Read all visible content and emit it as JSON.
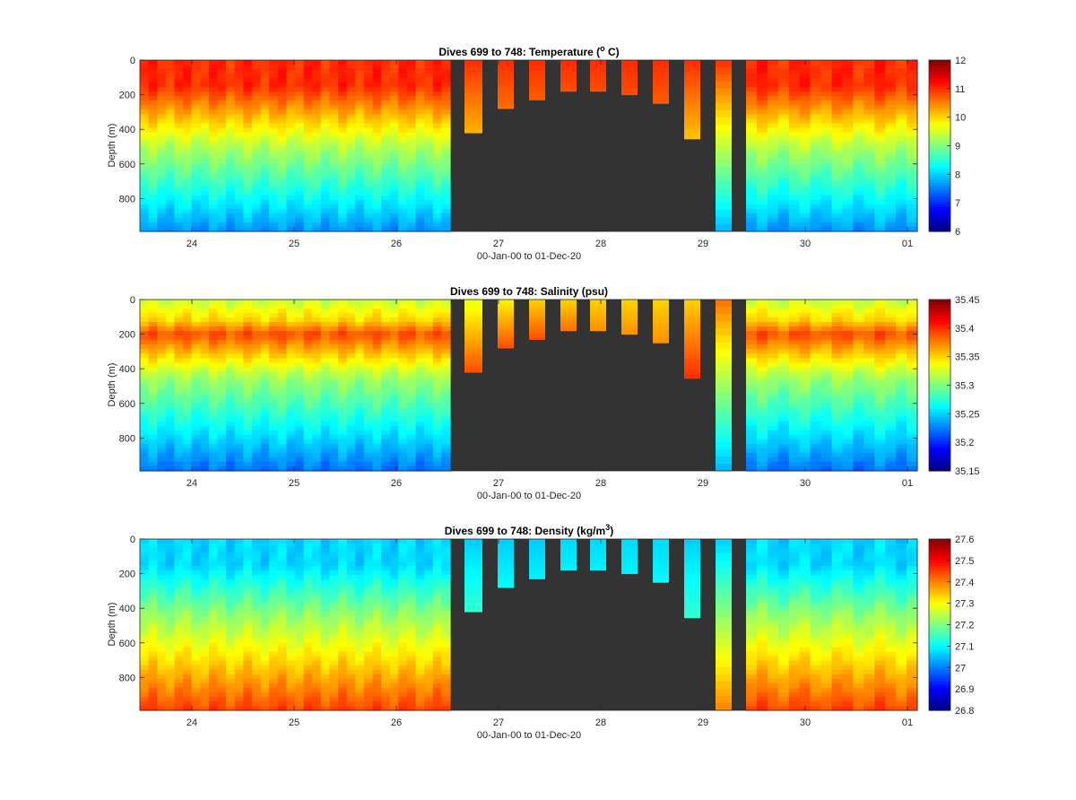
{
  "chart_data": [
    {
      "type": "heatmap",
      "title": "Dives 699 to 748: Temperature (° C)",
      "title_main": "Dives 699 to 748: Temperature (",
      "title_unit_sup": "o",
      "title_unit_tail": " C)",
      "xlabel": "00-Jan-00 to 01-Dec-20",
      "ylabel": "Depth (m)",
      "x_tick_labels": [
        "24",
        "25",
        "26",
        "27",
        "28",
        "29",
        "30",
        "01"
      ],
      "y_tick_labels": [
        "0",
        "200",
        "400",
        "600",
        "800"
      ],
      "y_ticks": [
        0,
        200,
        400,
        600,
        800
      ],
      "ylim": [
        0,
        990
      ],
      "y_reversed": true,
      "colorbar_ticks": [
        12,
        11,
        10,
        9,
        8,
        7,
        6
      ],
      "colorbar_tick_labels": [
        "12",
        "11",
        "10",
        "9",
        "8",
        "7",
        "6"
      ],
      "clim": [
        6,
        12
      ],
      "colormap": "jet",
      "no_data_color": "#333333",
      "top_layer": {
        "value": 11.0,
        "depth": 150
      },
      "mid_layer": {
        "value": 9.3,
        "depth": 500
      },
      "bottom_value": 7.6,
      "segment_profiles": [
        {
          "depth": 420,
          "top": 11.0,
          "bottom": 10.2
        },
        {
          "depth": 280,
          "top": 11.0,
          "bottom": 10.6
        },
        {
          "depth": 230,
          "top": 11.0,
          "bottom": 10.7
        },
        {
          "depth": 180,
          "top": 11.0,
          "bottom": 10.8
        },
        {
          "depth": 180,
          "top": 11.0,
          "bottom": 10.8
        },
        {
          "depth": 200,
          "top": 11.0,
          "bottom": 10.8
        },
        {
          "depth": 250,
          "top": 11.0,
          "bottom": 10.7
        },
        {
          "depth": 455,
          "top": 11.0,
          "bottom": 10.1
        },
        {
          "depth": 990,
          "top": 11.0,
          "bottom": 7.8
        }
      ]
    },
    {
      "type": "heatmap",
      "title": "Dives 699 to 748: Salinity (psu)",
      "xlabel": "00-Jan-00 to 01-Dec-20",
      "ylabel": "Depth (m)",
      "x_tick_labels": [
        "24",
        "25",
        "26",
        "27",
        "28",
        "29",
        "30",
        "01"
      ],
      "y_tick_labels": [
        "0",
        "200",
        "400",
        "600",
        "800"
      ],
      "y_ticks": [
        0,
        200,
        400,
        600,
        800
      ],
      "ylim": [
        0,
        990
      ],
      "y_reversed": true,
      "colorbar_ticks": [
        35.45,
        35.4,
        35.35,
        35.3,
        35.25,
        35.2,
        35.15
      ],
      "colorbar_tick_labels": [
        "35.45",
        "35.4",
        "35.35",
        "35.3",
        "35.25",
        "35.2",
        "35.15"
      ],
      "clim": [
        35.15,
        35.45
      ],
      "colormap": "jet",
      "no_data_color": "#333333",
      "surface_value": 35.32,
      "max_layer": {
        "value": 35.39,
        "depth": 200
      },
      "mid_layer": {
        "value": 35.31,
        "depth": 450
      },
      "bottom_value": 35.22,
      "segment_profiles": [
        {
          "depth": 420,
          "top": 35.33,
          "bottom": 35.39
        },
        {
          "depth": 280,
          "top": 35.34,
          "bottom": 35.39
        },
        {
          "depth": 230,
          "top": 35.35,
          "bottom": 35.39
        },
        {
          "depth": 180,
          "top": 35.35,
          "bottom": 35.38
        },
        {
          "depth": 180,
          "top": 35.35,
          "bottom": 35.37
        },
        {
          "depth": 200,
          "top": 35.35,
          "bottom": 35.37
        },
        {
          "depth": 250,
          "top": 35.35,
          "bottom": 35.37
        },
        {
          "depth": 455,
          "top": 35.35,
          "bottom": 35.4
        },
        {
          "depth": 990,
          "top": 35.38,
          "bottom": 35.24
        }
      ]
    },
    {
      "type": "heatmap",
      "title": "Dives 699 to 748: Density (kg/m³)",
      "title_main": "Dives 699 to 748: Density (kg/m",
      "title_unit_sup": "3",
      "title_unit_tail": ")",
      "xlabel": "00-Jan-00 to 01-Dec-20",
      "ylabel": "Depth (m)",
      "x_tick_labels": [
        "24",
        "25",
        "26",
        "27",
        "28",
        "29",
        "30",
        "01"
      ],
      "y_tick_labels": [
        "0",
        "200",
        "400",
        "600",
        "800"
      ],
      "y_ticks": [
        0,
        200,
        400,
        600,
        800
      ],
      "ylim": [
        0,
        990
      ],
      "y_reversed": true,
      "colorbar_ticks": [
        27.6,
        27.5,
        27.4,
        27.3,
        27.2,
        27.1,
        27,
        26.9,
        26.8
      ],
      "colorbar_tick_labels": [
        "27.6",
        "27.5",
        "27.4",
        "27.3",
        "27.2",
        "27.1",
        "27",
        "26.9",
        "26.8"
      ],
      "clim": [
        26.8,
        27.6
      ],
      "colormap": "jet",
      "no_data_color": "#333333",
      "top_layer": {
        "value": 27.07,
        "depth": 150
      },
      "mid_layer": {
        "value": 27.22,
        "depth": 450
      },
      "bottom_value": 27.45,
      "segment_profiles": [
        {
          "depth": 420,
          "top": 27.06,
          "bottom": 27.14
        },
        {
          "depth": 280,
          "top": 27.06,
          "bottom": 27.1
        },
        {
          "depth": 230,
          "top": 27.06,
          "bottom": 27.09
        },
        {
          "depth": 180,
          "top": 27.07,
          "bottom": 27.09
        },
        {
          "depth": 180,
          "top": 27.07,
          "bottom": 27.09
        },
        {
          "depth": 200,
          "top": 27.07,
          "bottom": 27.09
        },
        {
          "depth": 250,
          "top": 27.07,
          "bottom": 27.1
        },
        {
          "depth": 455,
          "top": 27.06,
          "bottom": 27.14
        },
        {
          "depth": 990,
          "top": 27.06,
          "bottom": 27.4
        }
      ]
    }
  ]
}
